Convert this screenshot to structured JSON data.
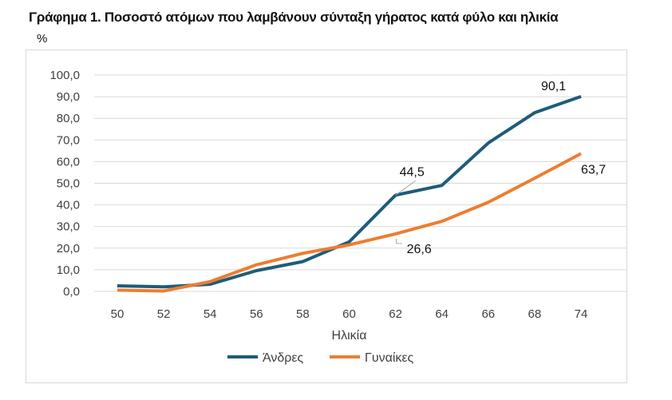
{
  "title": "Γράφημα 1. Ποσοστό  ατόμων που λαμβάνουν σύνταξη γήρατος κατά φύλο και ηλικία",
  "chart_data": {
    "type": "line",
    "title": "Γράφημα 1. Ποσοστό  ατόμων που λαμβάνουν σύνταξη γήρατος κατά φύλο και ηλικία",
    "ylabel": "%",
    "xlabel": "Ηλικία",
    "categories": [
      "50",
      "52",
      "54",
      "56",
      "58",
      "60",
      "62",
      "64",
      "66",
      "68",
      "74"
    ],
    "ylim": [
      0,
      100
    ],
    "yticks": [
      "0,0",
      "10,0",
      "20,0",
      "30,0",
      "40,0",
      "50,0",
      "60,0",
      "70,0",
      "80,0",
      "90,0",
      "100,0"
    ],
    "grid": true,
    "legend": "bottom",
    "series": [
      {
        "name": "Άνδρες",
        "color": "#1f5c7a",
        "values": [
          2.6,
          2.1,
          3.3,
          9.6,
          13.8,
          22.9,
          44.5,
          49.0,
          68.6,
          82.6,
          90.1
        ]
      },
      {
        "name": "Γυναίκες",
        "color": "#ed7d31",
        "values": [
          0.6,
          0.2,
          4.5,
          12.3,
          17.6,
          21.5,
          26.6,
          32.4,
          41.2,
          52.3,
          63.7
        ]
      }
    ],
    "data_labels": [
      {
        "series": 0,
        "index": 6,
        "text": "44,5"
      },
      {
        "series": 0,
        "index": 10,
        "text": "90,1"
      },
      {
        "series": 1,
        "index": 6,
        "text": "26,6"
      },
      {
        "series": 1,
        "index": 10,
        "text": "63,7"
      }
    ]
  }
}
